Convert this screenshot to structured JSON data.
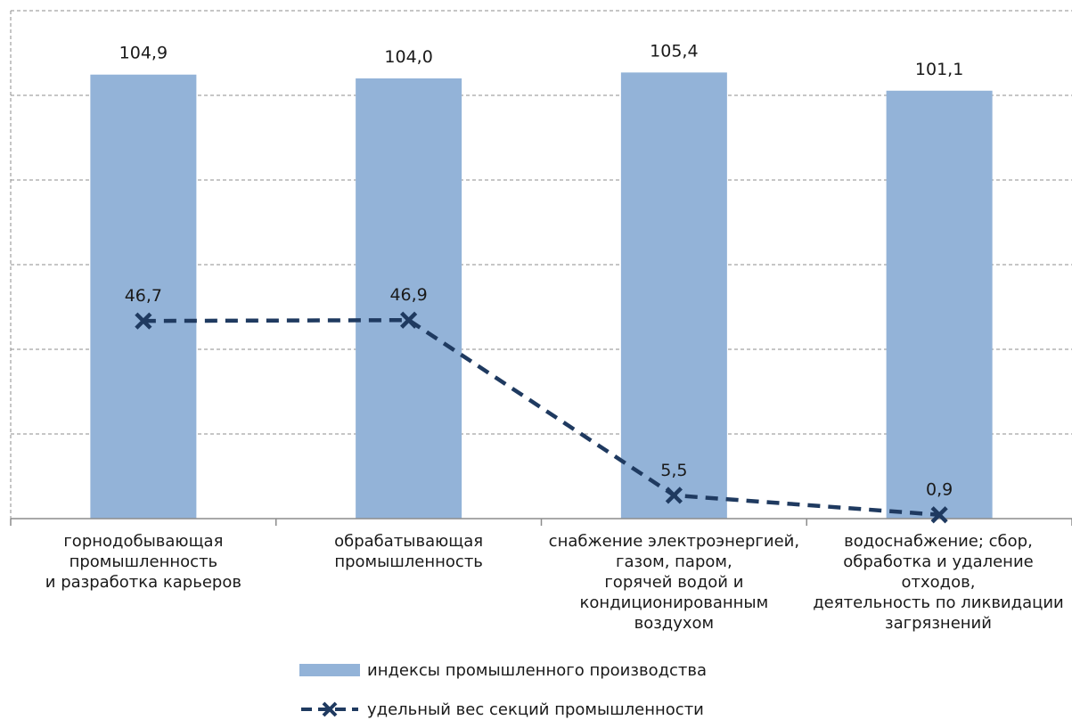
{
  "chart_data": {
    "type": "bar",
    "categories": [
      "горнодобывающая\nпромышленность\nи разработка карьеров",
      "обрабатывающая\nпромышленность",
      "снабжение электроэнергией,\nгазом, паром,\nгорячей водой и\nкондиционированным\nвоздухом",
      "водоснабжение; сбор,\nобработка и удаление\nотходов,\nдеятельность по ликвидации\nзагрязнений"
    ],
    "bar_series": {
      "name": "индексы промышленного производства",
      "values": [
        104.9,
        104.0,
        105.4,
        101.1
      ],
      "labels": [
        "104,9",
        "104,0",
        "105,4",
        "101,1"
      ],
      "color": "#93b3d8"
    },
    "line_series": {
      "name": "удельный вес секций промышленности",
      "values": [
        46.7,
        46.9,
        5.5,
        0.9
      ],
      "labels": [
        "46,7",
        "46,9",
        "5,5",
        "0,9"
      ],
      "color": "#1f3a60",
      "marker": "x",
      "style": "dashed"
    },
    "ylim": [
      0,
      120
    ],
    "grid": true,
    "legend_position": "bottom"
  }
}
